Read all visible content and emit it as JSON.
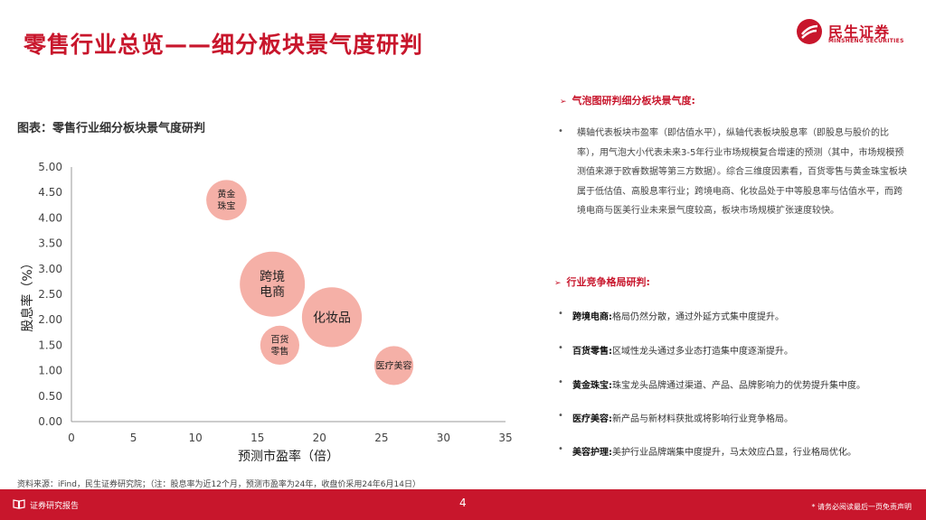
{
  "header": {
    "title": "零售行业总览——细分板块景气度研判",
    "logo_cn": "民生证券",
    "logo_en": "MINSHENG SECURITIES"
  },
  "chart_title": "图表：零售行业细分板块景气度研判",
  "chart_data": {
    "type": "scatter",
    "xlabel": "预测市盈率（倍）",
    "ylabel": "股息率（%）",
    "xlim": [
      0,
      35
    ],
    "ylim": [
      0,
      5
    ],
    "x_ticks": [
      "0",
      "5",
      "10",
      "15",
      "20",
      "25",
      "30",
      "35"
    ],
    "y_ticks": [
      "0.00",
      "0.50",
      "1.00",
      "1.50",
      "2.00",
      "2.50",
      "3.00",
      "3.50",
      "4.00",
      "4.50",
      "5.00"
    ],
    "grid": false,
    "color": "#f4a79d",
    "points": [
      {
        "label": "黄金\n珠宝",
        "x": 12.5,
        "y": 4.35,
        "size": 0.62
      },
      {
        "label": "跨境\n电商",
        "x": 16.2,
        "y": 2.7,
        "size": 1.0
      },
      {
        "label": "化妆品",
        "x": 21.0,
        "y": 2.05,
        "size": 0.92
      },
      {
        "label": "百货\n零售",
        "x": 16.8,
        "y": 1.5,
        "size": 0.6
      },
      {
        "label": "医疗美容",
        "x": 26.0,
        "y": 1.1,
        "size": 0.6
      }
    ]
  },
  "source": "资料来源：iFind，民生证券研究院；（注：股息率为近12个月，预测市盈率为24年，收盘价采用24年6月14日）",
  "right": {
    "section1_title": "气泡图研判细分板块景气度:",
    "section1_text": "横轴代表板块市盈率（即估值水平），纵轴代表板块股息率（即股息与股价的比率），用气泡大小代表未来3-5年行业市场规模复合增速的预测（其中，市场规模预测值来源于欧睿数据等第三方数据）。综合三维度因素看，百货零售与黄金珠宝板块属于低估值、高股息率行业；跨境电商、化妆品处于中等股息率与估值水平，而跨境电商与医美行业未来景气度较高，板块市场规模扩张速度较快。",
    "section2_title": "行业竞争格局研判:",
    "items": [
      {
        "name": "跨境电商:",
        "text": "格局仍然分散，通过外延方式集中度提升。"
      },
      {
        "name": "百货零售:",
        "text": "区域性龙头通过多业态打造集中度逐渐提升。"
      },
      {
        "name": "黄金珠宝:",
        "text": "珠宝龙头品牌通过渠道、产品、品牌影响力的优势提升集中度。"
      },
      {
        "name": "医疗美容:",
        "text": "新产品与新材料获批或将影响行业竞争格局。"
      },
      {
        "name": "美容护理:",
        "text": "美护行业品牌端集中度提升，马太效应凸显，行业格局优化。"
      }
    ]
  },
  "footer": {
    "label": "证券研究报告",
    "page": "4",
    "disclaimer": "* 请务必阅读最后一页免责声明"
  },
  "colors": {
    "brand": "#c8162c",
    "bubble": "#f4a79d"
  }
}
